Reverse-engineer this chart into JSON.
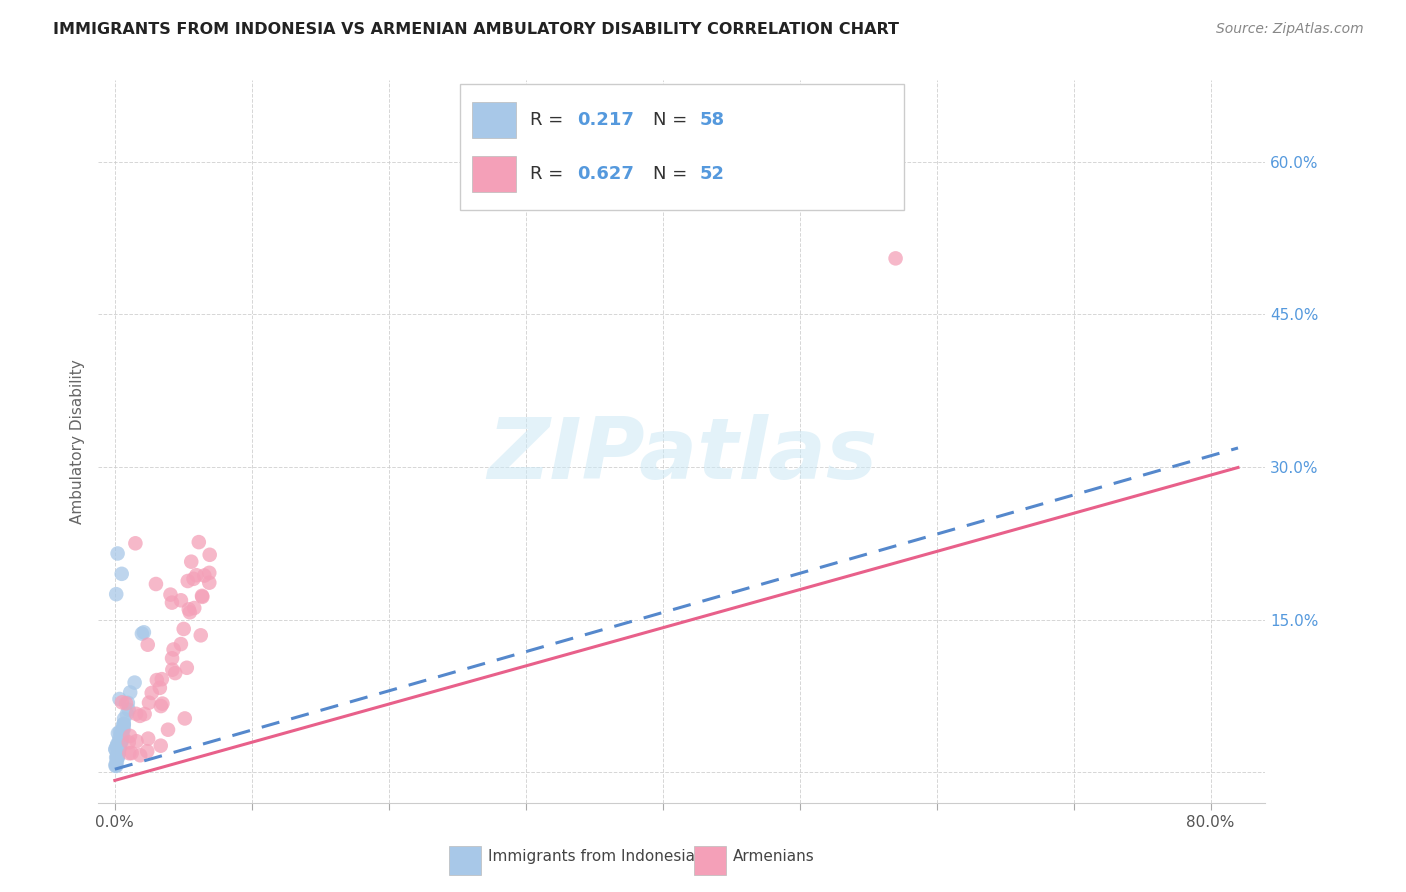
{
  "title": "IMMIGRANTS FROM INDONESIA VS ARMENIAN AMBULATORY DISABILITY CORRELATION CHART",
  "source": "Source: ZipAtlas.com",
  "ylabel_text": "Ambulatory Disability",
  "x_tick_positions": [
    0.0,
    0.1,
    0.2,
    0.3,
    0.4,
    0.5,
    0.6,
    0.7,
    0.8
  ],
  "x_tick_labels": [
    "0.0%",
    "",
    "",
    "",
    "",
    "",
    "",
    "",
    "80.0%"
  ],
  "y_tick_positions": [
    0.0,
    0.15,
    0.3,
    0.45,
    0.6
  ],
  "y_tick_labels": [
    "",
    "15.0%",
    "30.0%",
    "45.0%",
    "60.0%"
  ],
  "xlim": [
    -0.012,
    0.84
  ],
  "ylim": [
    -0.03,
    0.68
  ],
  "indonesia_color": "#a8c8e8",
  "armenian_color": "#f4a0b8",
  "indonesia_line_color": "#5588cc",
  "armenian_line_color": "#e8608a",
  "indonesia_R": 0.217,
  "indonesia_N": 58,
  "armenian_R": 0.627,
  "armenian_N": 52,
  "watermark": "ZIPatlas",
  "legend_label_indo": "Immigrants from Indonesia",
  "legend_label_arm": "Armenians",
  "tick_color": "#5599dd",
  "title_color": "#222222",
  "source_color": "#888888",
  "indonesia_line_intercept": 0.003,
  "indonesia_line_slope": 0.385,
  "armenian_line_intercept": -0.008,
  "armenian_line_slope": 0.375
}
